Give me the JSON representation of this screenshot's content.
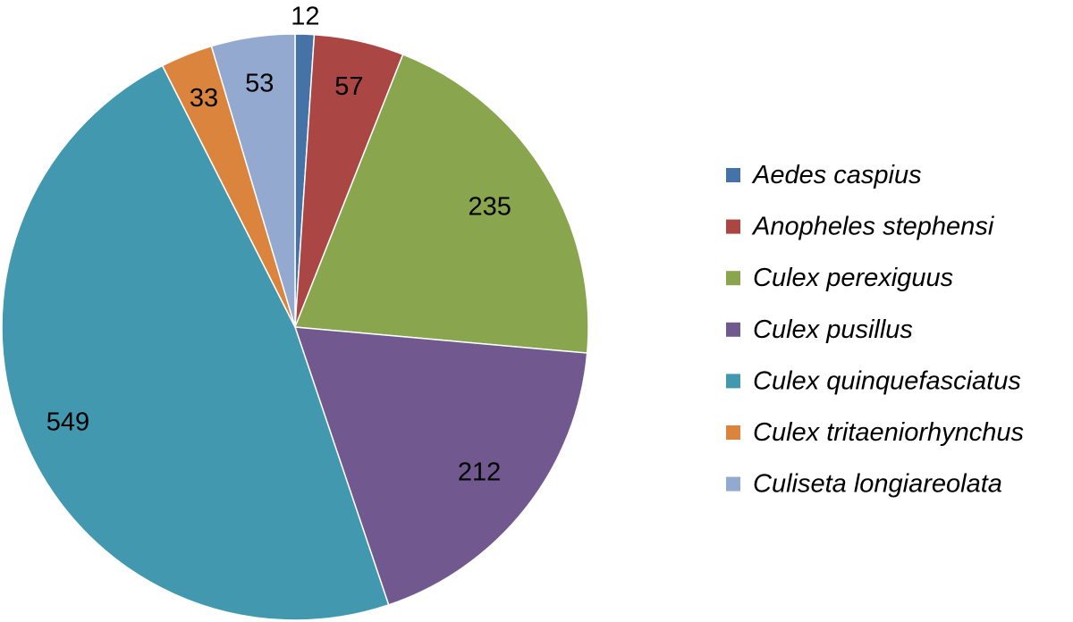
{
  "chart_data": {
    "type": "pie",
    "start_angle_deg": 0,
    "direction": "clockwise",
    "legend_position": "right",
    "categories": [
      "Aedes caspius",
      "Anopheles stephensi",
      "Culex perexiguus",
      "Culex pusillus",
      "Culex quinquefasciatus",
      "Culex tritaeniorhynchus",
      "Culiseta longiareolata"
    ],
    "values": [
      12,
      57,
      235,
      212,
      549,
      33,
      53
    ],
    "colors": [
      "#4572A7",
      "#AA4643",
      "#89A54E",
      "#71588F",
      "#4198AF",
      "#DB843D",
      "#93A9CF"
    ]
  }
}
